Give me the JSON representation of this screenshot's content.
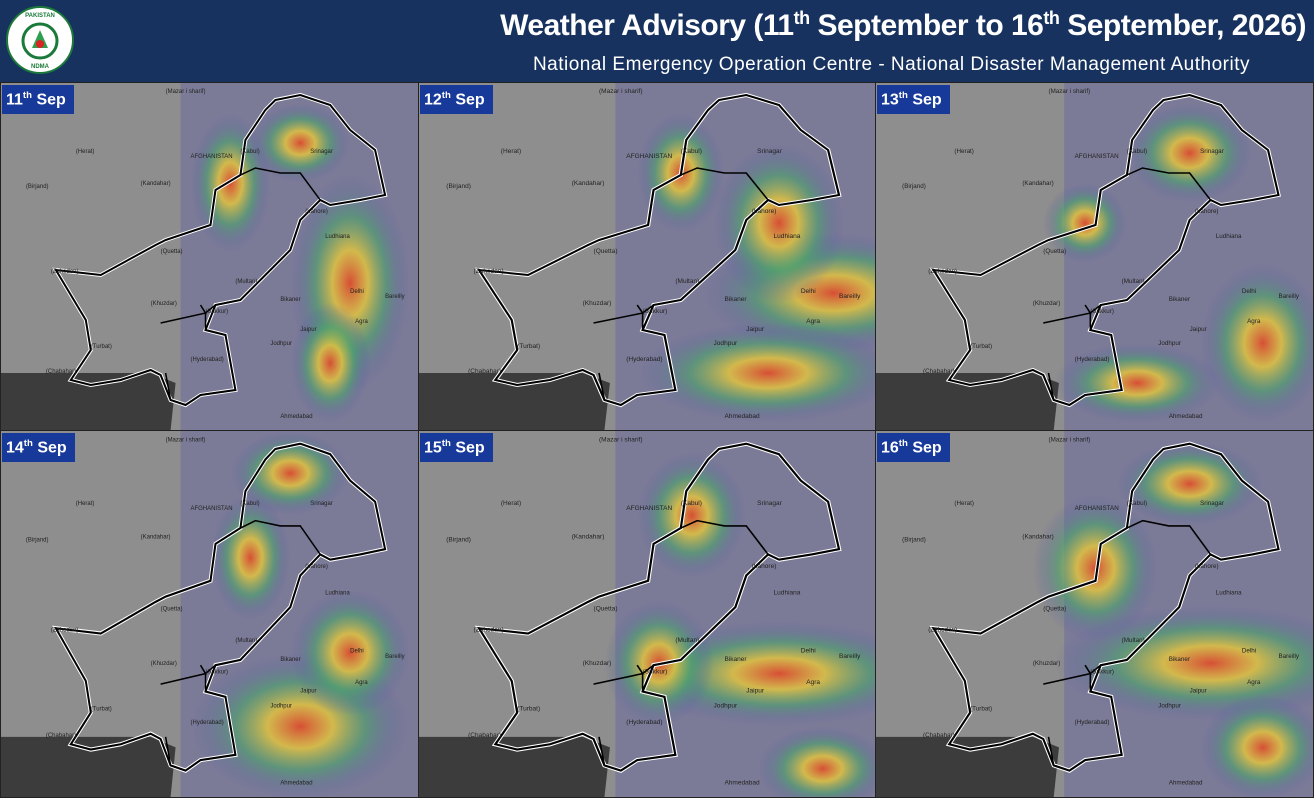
{
  "header": {
    "title": {
      "lead": "Weather Advisory (11",
      "sup1": "th",
      "mid": " September to 16",
      "sup2": "th",
      "tail": " September, 2026)"
    },
    "subtitle": "National Emergency Operation Centre - National Disaster Management Authority",
    "logo": {
      "top": "PAKISTAN",
      "bottom": "NDMA"
    }
  },
  "panels": [
    {
      "day": "11",
      "suffix": "th",
      "month": "Sep"
    },
    {
      "day": "12",
      "suffix": "th",
      "month": "Sep"
    },
    {
      "day": "13",
      "suffix": "th",
      "month": "Sep"
    },
    {
      "day": "14",
      "suffix": "th",
      "month": "Sep"
    },
    {
      "day": "15",
      "suffix": "th",
      "month": "Sep"
    },
    {
      "day": "16",
      "suffix": "th",
      "month": "Sep"
    }
  ],
  "places": [
    "AFGHANISTAN",
    "(Kabul)",
    "(Herat)",
    "(Kandahar)",
    "(Quetta)",
    "(Multan)",
    "(Lahore)",
    "Srinagar",
    "Ludhiana",
    "Delhi",
    "Bikaner",
    "Jodhpur",
    "Jaipur",
    "Agra",
    "Bareilly",
    "(Sukkur)",
    "(Khuzdar)",
    "(Hyderabad)",
    "(Turbat)",
    "(Chabahar)",
    "(Zahedan)",
    "Ahmedabad",
    "(Mazar i sharif)",
    "(Birjand)"
  ]
}
